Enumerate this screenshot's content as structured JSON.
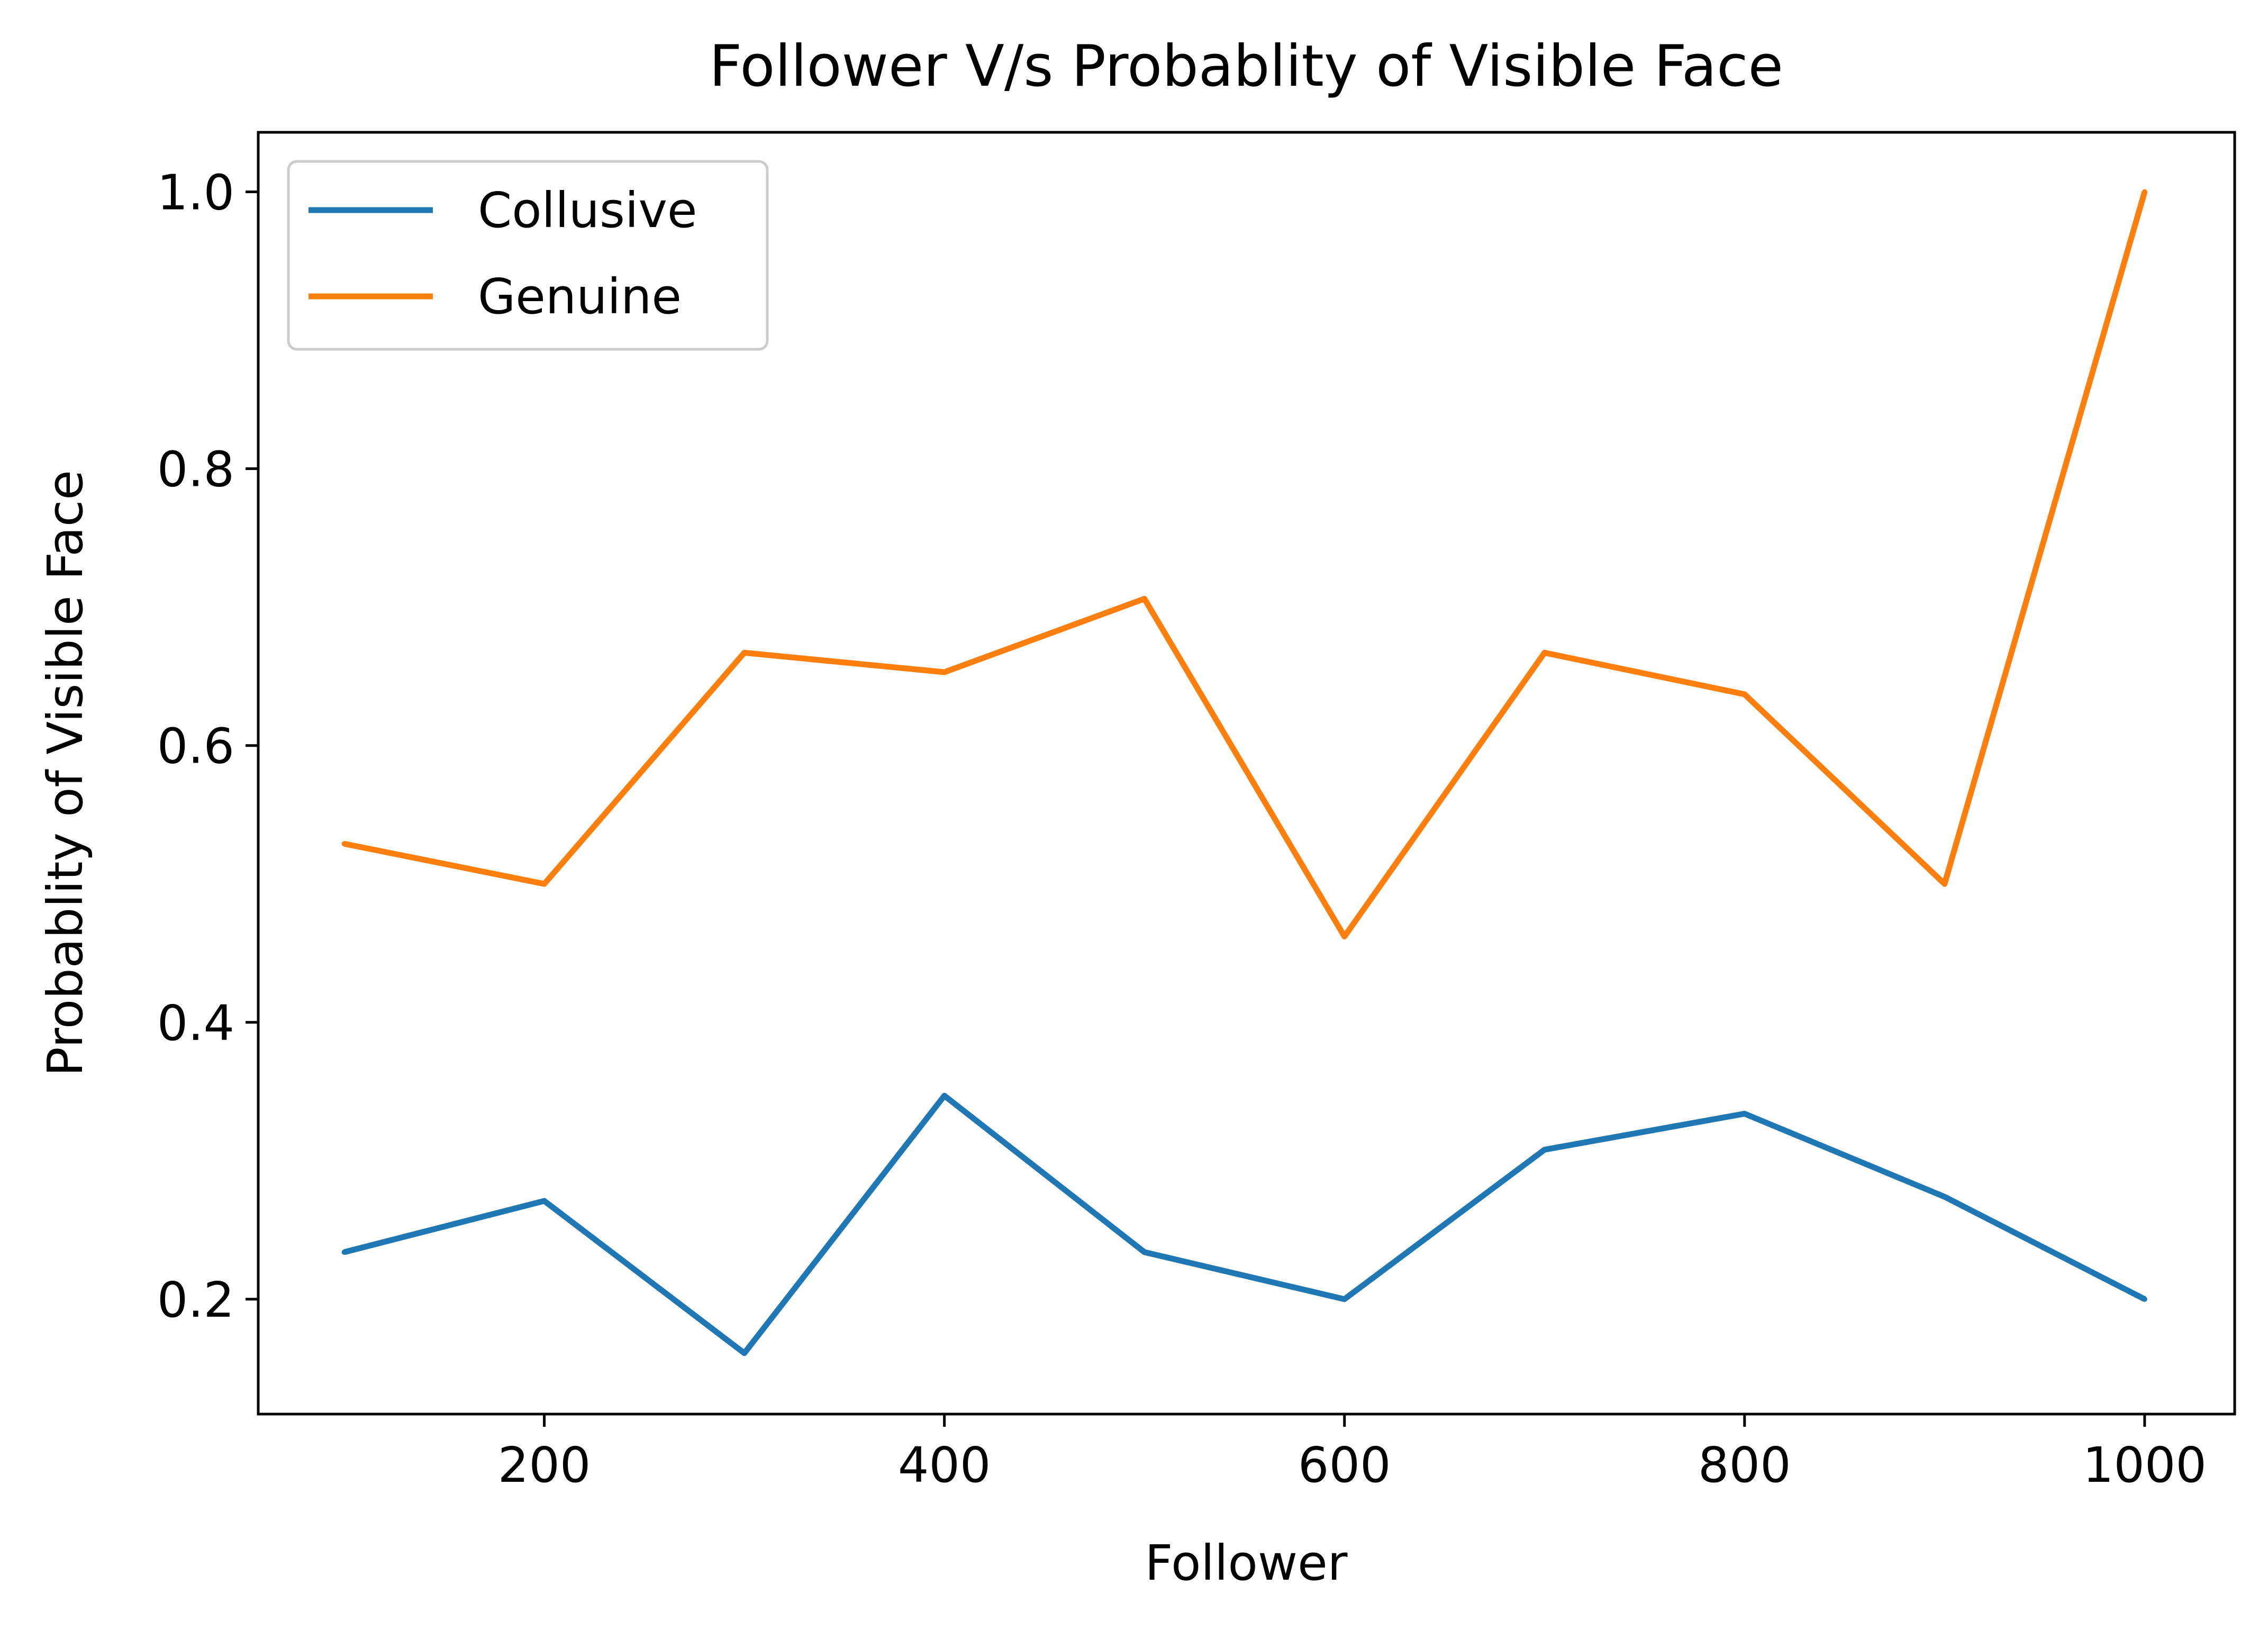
{
  "chart_data": {
    "type": "line",
    "title": "Follower V/s Probablity of Visible Face",
    "xlabel": "Follower",
    "ylabel": "Probablity of Visible Face",
    "xlim": [
      57,
      1045
    ],
    "ylim": [
      0.117,
      1.043
    ],
    "xticks": [
      200,
      400,
      600,
      800,
      1000
    ],
    "xtick_labels": [
      "200",
      "400",
      "600",
      "800",
      "1000"
    ],
    "yticks": [
      0.2,
      0.4,
      0.6,
      0.8,
      1.0
    ],
    "ytick_labels": [
      "0.2",
      "0.4",
      "0.6",
      "0.8",
      "1.0"
    ],
    "grid": false,
    "legend_position": "upper-left",
    "x": [
      100,
      200,
      300,
      400,
      500,
      600,
      700,
      800,
      900,
      1000
    ],
    "series": [
      {
        "name": "Collusive",
        "color": "#1f77b4",
        "values": [
          0.234,
          0.271,
          0.161,
          0.347,
          0.234,
          0.2,
          0.308,
          0.334,
          0.274,
          0.2
        ]
      },
      {
        "name": "Genuine",
        "color": "#ff7f0e",
        "values": [
          0.529,
          0.5,
          0.667,
          0.653,
          0.706,
          0.462,
          0.667,
          0.637,
          0.5,
          1.0
        ]
      }
    ]
  }
}
